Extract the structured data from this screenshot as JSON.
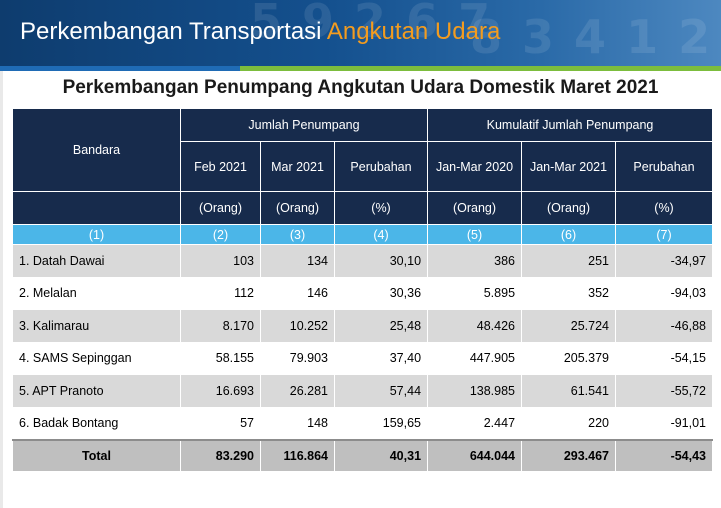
{
  "banner": {
    "title_part1": "Perkembangan Transportasi ",
    "title_part2": "Angkutan Udara",
    "accent_color": "#f39c1f"
  },
  "subtitle": "Perkembangan Penumpang Angkutan Udara Domestik  Maret 2021",
  "table": {
    "header": {
      "bandara": "Bandara",
      "group1": "Jumlah Penumpang",
      "group2": "Kumulatif Jumlah Penumpang",
      "cols": [
        "Feb 2021",
        "Mar 2021",
        "Perubahan",
        "Jan-Mar 2020",
        "Jan-Mar 2021",
        "Perubahan"
      ],
      "units": [
        "(Orang)",
        "(Orang)",
        "(%)",
        "(Orang)",
        "(Orang)",
        "(%)"
      ],
      "index": [
        "(1)",
        "(2)",
        "(3)",
        "(4)",
        "(5)",
        "(6)",
        "(7)"
      ]
    },
    "rows": [
      {
        "name": "1. Datah Dawai",
        "v": [
          "103",
          "134",
          "30,10",
          "386",
          "251",
          "-34,97"
        ]
      },
      {
        "name": "2. Melalan",
        "v": [
          "112",
          "146",
          "30,36",
          "5.895",
          "352",
          "-94,03"
        ]
      },
      {
        "name": "3. Kalimarau",
        "v": [
          "8.170",
          "10.252",
          "25,48",
          "48.426",
          "25.724",
          "-46,88"
        ]
      },
      {
        "name": "4. SAMS Sepinggan",
        "v": [
          "58.155",
          "79.903",
          "37,40",
          "447.905",
          "205.379",
          "-54,15"
        ]
      },
      {
        "name": "5. APT Pranoto",
        "v": [
          "16.693",
          "26.281",
          "57,44",
          "138.985",
          "61.541",
          "-55,72"
        ]
      },
      {
        "name": "6. Badak Bontang",
        "v": [
          "57",
          "148",
          "159,65",
          "2.447",
          "220",
          "-91,01"
        ]
      }
    ],
    "total": {
      "label": "Total",
      "v": [
        "83.290",
        "116.864",
        "40,31",
        "644.044",
        "293.467",
        "-54,43"
      ]
    }
  }
}
